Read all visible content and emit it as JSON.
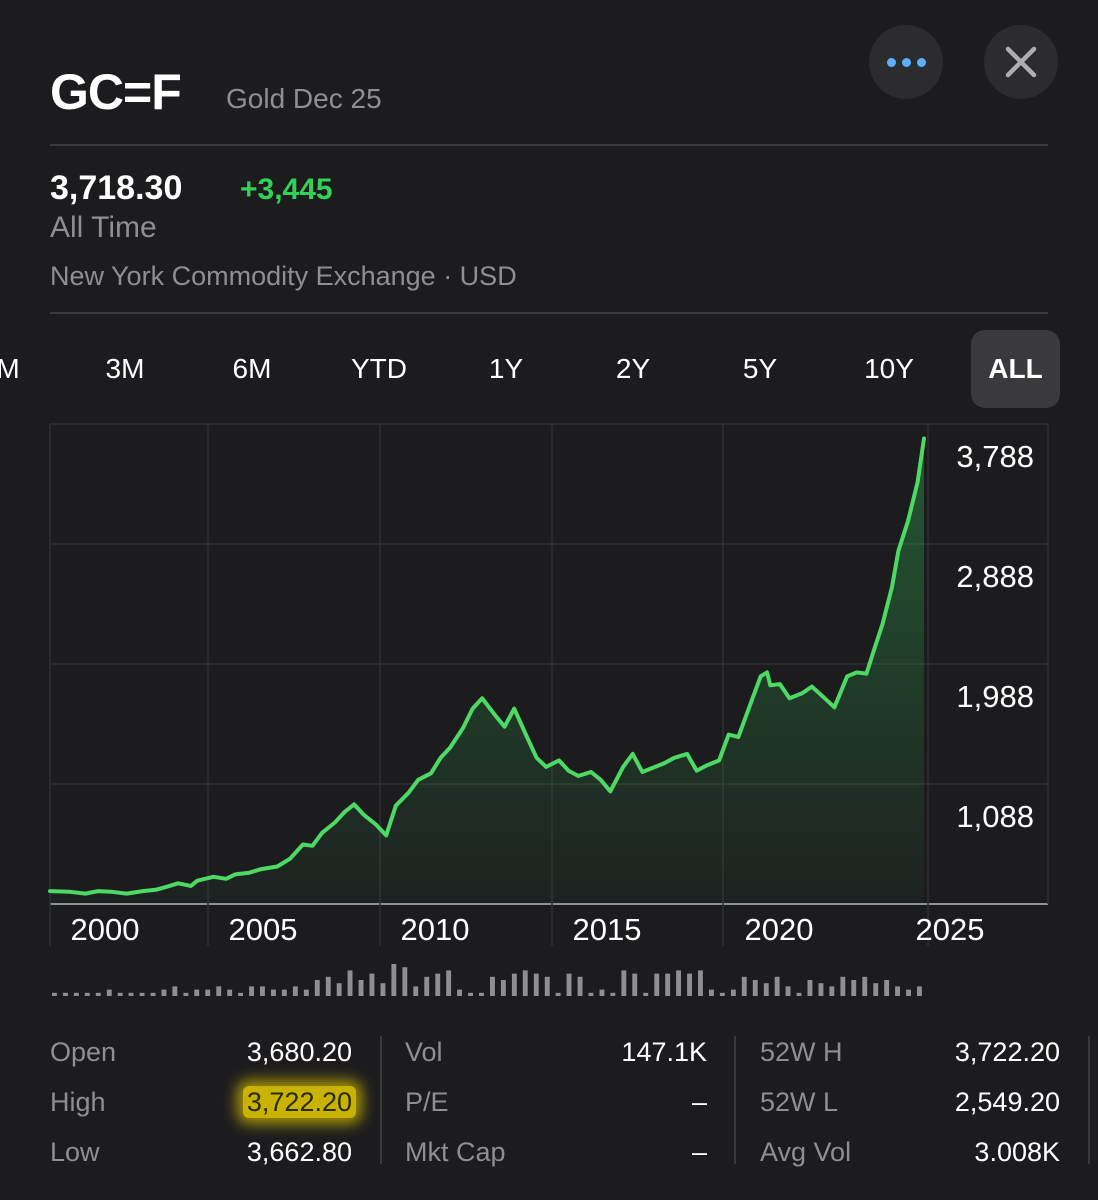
{
  "header": {
    "ticker": "GC=F",
    "name": "Gold Dec 25",
    "more_icon": "ellipsis-icon",
    "close_icon": "close-icon"
  },
  "quote": {
    "price": "3,718.30",
    "change": "+3,445",
    "period": "All Time",
    "exchange": "New York Commodity Exchange · USD",
    "change_color": "#30d158"
  },
  "range_tabs": [
    {
      "label": "M"
    },
    {
      "label": "3M"
    },
    {
      "label": "6M"
    },
    {
      "label": "YTD"
    },
    {
      "label": "1Y"
    },
    {
      "label": "2Y"
    },
    {
      "label": "5Y"
    },
    {
      "label": "10Y"
    },
    {
      "label": "ALL",
      "active": true
    }
  ],
  "chart_data": {
    "type": "area",
    "x_tick_labels": [
      "2000",
      "2005",
      "2010",
      "2015",
      "2020",
      "2025"
    ],
    "y_tick_labels": [
      "3,788",
      "2,888",
      "1,988",
      "1,088"
    ],
    "y_ticks": [
      3788,
      2888,
      1988,
      1088
    ],
    "ylim": [
      190,
      3900
    ],
    "xlim": [
      1998.4,
      2027.5
    ],
    "line_color": "#4cd964",
    "x": [
      1998.4,
      1999.0,
      1999.5,
      1999.9,
      2000.3,
      2000.8,
      2001.3,
      2001.7,
      2002.0,
      2002.4,
      2002.8,
      2003.0,
      2003.5,
      2003.9,
      2004.2,
      2004.6,
      2005.0,
      2005.5,
      2005.9,
      2006.3,
      2006.6,
      2006.9,
      2007.3,
      2007.6,
      2007.9,
      2008.2,
      2008.6,
      2008.9,
      2009.2,
      2009.6,
      2009.9,
      2010.3,
      2010.6,
      2010.9,
      2011.3,
      2011.6,
      2011.9,
      2012.3,
      2012.6,
      2012.9,
      2013.3,
      2013.6,
      2013.9,
      2014.3,
      2014.6,
      2014.9,
      2015.3,
      2015.6,
      2015.9,
      2016.3,
      2016.6,
      2016.9,
      2017.3,
      2017.6,
      2017.9,
      2018.3,
      2018.6,
      2018.9,
      2019.3,
      2019.6,
      2019.9,
      2020.3,
      2020.6,
      2020.8,
      2020.9,
      2021.2,
      2021.5,
      2021.9,
      2022.2,
      2022.6,
      2022.9,
      2023.3,
      2023.6,
      2023.9,
      2024.2,
      2024.4,
      2024.7,
      2024.9,
      2025.2,
      2025.5,
      2025.7
    ],
    "y": [
      290,
      285,
      270,
      290,
      285,
      270,
      290,
      300,
      320,
      350,
      330,
      370,
      400,
      385,
      420,
      430,
      460,
      480,
      540,
      650,
      640,
      740,
      820,
      900,
      960,
      880,
      800,
      720,
      950,
      1050,
      1150,
      1200,
      1320,
      1400,
      1550,
      1700,
      1780,
      1650,
      1560,
      1700,
      1480,
      1320,
      1250,
      1300,
      1220,
      1180,
      1210,
      1150,
      1060,
      1250,
      1350,
      1210,
      1250,
      1280,
      1320,
      1350,
      1220,
      1260,
      1300,
      1500,
      1480,
      1750,
      1950,
      1980,
      1880,
      1890,
      1780,
      1820,
      1870,
      1780,
      1710,
      1950,
      1980,
      1970,
      2200,
      2350,
      2640,
      2920,
      3150,
      3450,
      3788
    ]
  },
  "volume_bars": [
    1,
    1,
    1,
    1,
    1,
    2,
    1,
    1,
    1,
    1,
    2,
    3,
    1,
    2,
    2,
    3,
    2,
    1,
    3,
    3,
    2,
    2,
    3,
    2,
    5,
    6,
    4,
    8,
    5,
    7,
    4,
    10,
    9,
    3,
    6,
    7,
    8,
    2,
    1,
    1,
    6,
    5,
    7,
    8,
    7,
    6,
    1,
    7,
    6,
    1,
    2,
    1,
    8,
    7,
    1,
    7,
    7,
    8,
    7,
    8,
    2,
    1,
    2,
    6,
    5,
    4,
    6,
    3,
    1,
    5,
    4,
    3,
    6,
    5,
    6,
    4,
    5,
    3,
    2,
    3
  ],
  "stats": {
    "col1": [
      {
        "label": "Open",
        "value": "3,680.20"
      },
      {
        "label": "High",
        "value": "3,722.20",
        "highlighted": true
      },
      {
        "label": "Low",
        "value": "3,662.80"
      }
    ],
    "col2": [
      {
        "label": "Vol",
        "value": "147.1K"
      },
      {
        "label": "P/E",
        "value": "–"
      },
      {
        "label": "Mkt Cap",
        "value": "–"
      }
    ],
    "col3": [
      {
        "label": "52W H",
        "value": "3,722.20"
      },
      {
        "label": "52W L",
        "value": "2,549.20"
      },
      {
        "label": "Avg Vol",
        "value": "3.008K"
      }
    ],
    "highlight_color": "#c9b300"
  }
}
